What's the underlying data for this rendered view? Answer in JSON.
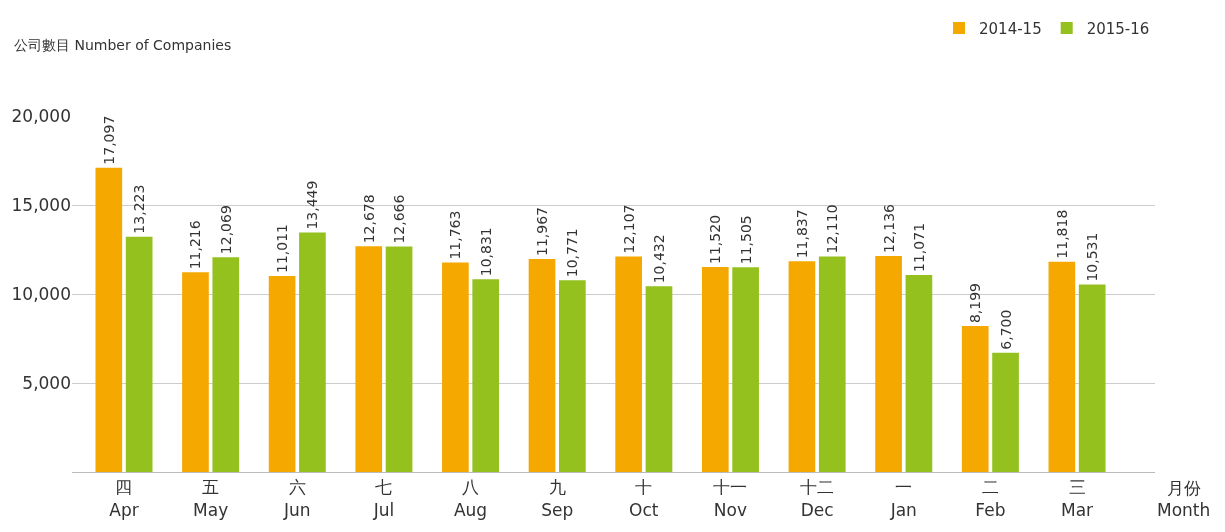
{
  "chart_data": {
    "type": "bar",
    "ylabel": "公司數目 Number of Companies",
    "xlabel": "月份\nMonth",
    "categories": [
      "四\nApr",
      "五\nMay",
      "六\nJun",
      "七\nJul",
      "八\nAug",
      "九\nSep",
      "十\nOct",
      "十一\nNov",
      "十二\nDec",
      "一\nJan",
      "二\nFeb",
      "三\nMar"
    ],
    "series": [
      {
        "name": "2014-15",
        "color": "#f5a800",
        "values": [
          17097,
          11216,
          11011,
          12678,
          11763,
          11967,
          12107,
          11520,
          11837,
          12136,
          8199,
          11818
        ],
        "value_labels": [
          "17,097",
          "11,216",
          "11,011",
          "12,678",
          "11,763",
          "11,967",
          "12,107",
          "11,520",
          "11,837",
          "12,136",
          "8,199",
          "11,818"
        ]
      },
      {
        "name": "2015-16",
        "color": "#95c11f",
        "values": [
          13223,
          12069,
          13449,
          12666,
          10831,
          10771,
          10432,
          11505,
          12110,
          11071,
          6700,
          10531
        ],
        "value_labels": [
          "13,223",
          "12,069",
          "13,449",
          "12,666",
          "10,831",
          "10,771",
          "10,432",
          "11,505",
          "12,110",
          "11,071",
          "6,700",
          "10,531"
        ]
      }
    ],
    "ylim": [
      0,
      20000
    ],
    "yticks": [
      {
        "value": 5000,
        "label": "5,000"
      },
      {
        "value": 10000,
        "label": "10,000"
      },
      {
        "value": 15000,
        "label": "15,000"
      },
      {
        "value": 20000,
        "label": "20,000"
      }
    ],
    "grid": "y",
    "legend": "top right"
  }
}
